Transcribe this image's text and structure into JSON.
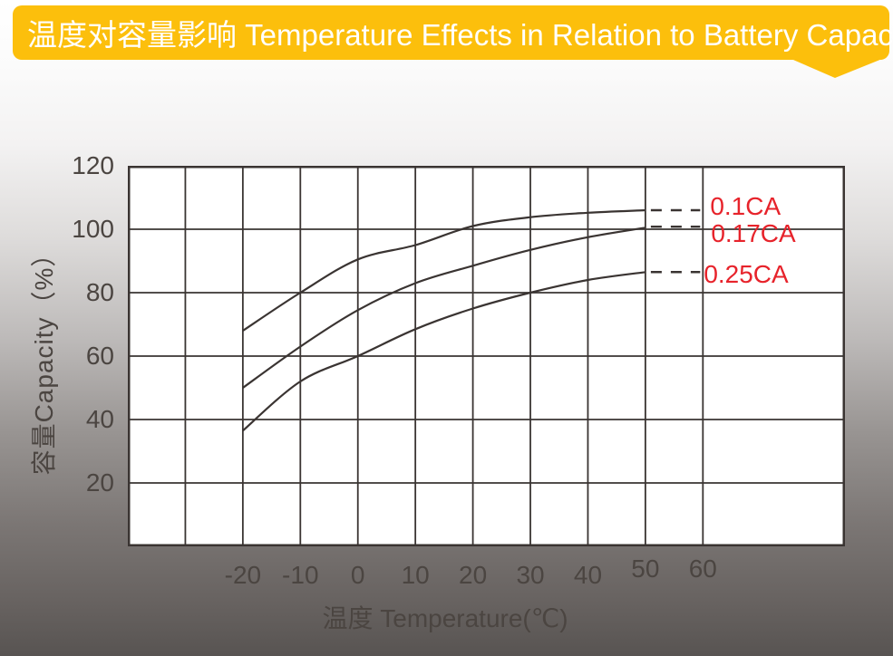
{
  "header": {
    "title": "温度对容量影响 Temperature Effects in Relation to Battery Capacity",
    "bg_color": "#fcbf0c",
    "text_color": "#ffffff"
  },
  "chart_data": {
    "type": "line",
    "title": "温度对容量影响 Temperature Effects in Relation to Battery Capacity",
    "xlabel": "温度 Temperature(℃)",
    "ylabel": "容量Capacity（%）",
    "xlim": [
      -40,
      84.7
    ],
    "ylim": [
      0,
      120
    ],
    "x_ticks": [
      -20,
      -10,
      0,
      10,
      20,
      30,
      40,
      50,
      60
    ],
    "y_ticks": [
      20,
      40,
      60,
      80,
      100,
      120
    ],
    "grid": "on",
    "x_grid_step": 10,
    "y_grid_step": 20,
    "legend_position": "right-inside",
    "line_color": "#3a3432",
    "tick_color": "#4b4541",
    "series_label_color": "#e7232b",
    "plot_bg": "#ffffff",
    "categories_x": [
      -20,
      -10,
      0,
      10,
      20,
      30,
      40,
      50
    ],
    "series": [
      {
        "name": "0.1CA",
        "x": [
          -20,
          -10,
          0,
          10,
          20,
          30,
          40,
          50
        ],
        "y": [
          68,
          80,
          90.5,
          95,
          101,
          103.8,
          105.2,
          106
        ],
        "dash_end_value": 106,
        "dash_x_end": 60
      },
      {
        "name": "0.17CA",
        "x": [
          -20,
          -10,
          0,
          10,
          20,
          30,
          40,
          50
        ],
        "y": [
          50,
          63,
          74.5,
          83,
          88.5,
          93.5,
          97.5,
          100.5
        ],
        "dash_end_value": 100.8,
        "dash_x_end": 60
      },
      {
        "name": "0.25CA",
        "x": [
          -20,
          -10,
          0,
          10,
          20,
          30,
          40,
          50
        ],
        "y": [
          36.5,
          52,
          60,
          68.5,
          75,
          80,
          84,
          86.5
        ],
        "dash_end_value": 86.5,
        "dash_x_end": 60
      }
    ]
  }
}
